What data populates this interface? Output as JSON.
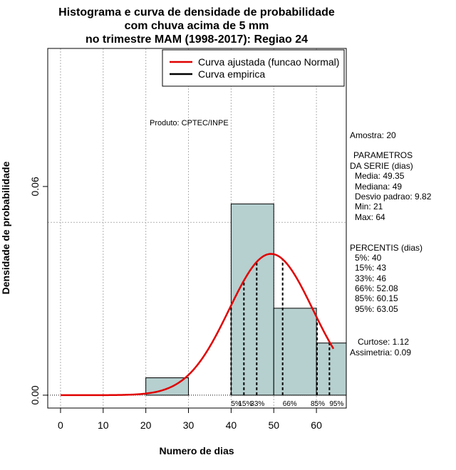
{
  "chart_data": {
    "type": "bar",
    "title_lines": [
      "Histograma e curva de densidade de probabilidade",
      "com chuva acima de 5 mm",
      "no trimestre MAM (1998-2017): Regiao 24"
    ],
    "xlabel": "Numero de dias",
    "ylabel": "Densidade de probabilidade",
    "xlim": [
      -3,
      67
    ],
    "ylim": [
      -0.0037,
      0.0997
    ],
    "x_ticks": [
      0,
      10,
      20,
      30,
      40,
      50,
      60
    ],
    "y_ticks": [
      0.0,
      0.06
    ],
    "y_tick_labels": [
      "0.00",
      "0.06"
    ],
    "grid_x": [
      0,
      10,
      20,
      30,
      40,
      50,
      60
    ],
    "grid_y": [
      0.0497
    ],
    "bins": [
      {
        "start": 20,
        "end": 30,
        "density": 0.005
      },
      {
        "start": 30,
        "end": 40,
        "density": 0.0
      },
      {
        "start": 40,
        "end": 50,
        "density": 0.055
      },
      {
        "start": 50,
        "end": 60,
        "density": 0.025
      },
      {
        "start": 60,
        "end": 67,
        "density": 0.015
      }
    ],
    "fitted_curve": {
      "name": "Curva ajustada (funcao Normal)",
      "mean": 49.35,
      "sd": 9.82,
      "x_range": [
        0,
        64
      ]
    },
    "empirical_curve": {
      "name": "Curva empirica"
    },
    "percentile_lines": [
      {
        "label": "5%",
        "x": 40
      },
      {
        "label": "15%",
        "x": 43
      },
      {
        "label": "33%",
        "x": 46
      },
      {
        "label": "66%",
        "x": 52.08
      },
      {
        "label": "85%",
        "x": 60.15
      },
      {
        "label": "95%",
        "x": 63.05
      }
    ],
    "legend_position": "top-right",
    "legend": [
      {
        "label": "Curva ajustada (funcao Normal)",
        "color": "#e00000"
      },
      {
        "label": "Curva empirica",
        "color": "#000000"
      }
    ],
    "annotation": "Produto: CPTEC/INPE",
    "colors": {
      "bar_fill": "#b6cfcf",
      "curve": "#e00000",
      "grid": "#b0b0b0"
    }
  },
  "stats_panel": {
    "sample": "Amostra: 20",
    "params_title_1": "PARAMETROS",
    "params_title_2": "DA SERIE (dias)",
    "media": "Media: 49.35",
    "mediana": "Mediana: 49",
    "desvio": "Desvio padrao: 9.82",
    "min": "Min: 21",
    "max": "Max: 64",
    "percentis_title": "PERCENTIS (dias)",
    "p5": "5%: 40",
    "p15": "15%: 43",
    "p33": "33%: 46",
    "p66": "66%: 52.08",
    "p85": "85%: 60.15",
    "p95": "95%: 63.05",
    "curtose": "Curtose: 1.12",
    "assimetria": "Assimetria: 0.09"
  }
}
